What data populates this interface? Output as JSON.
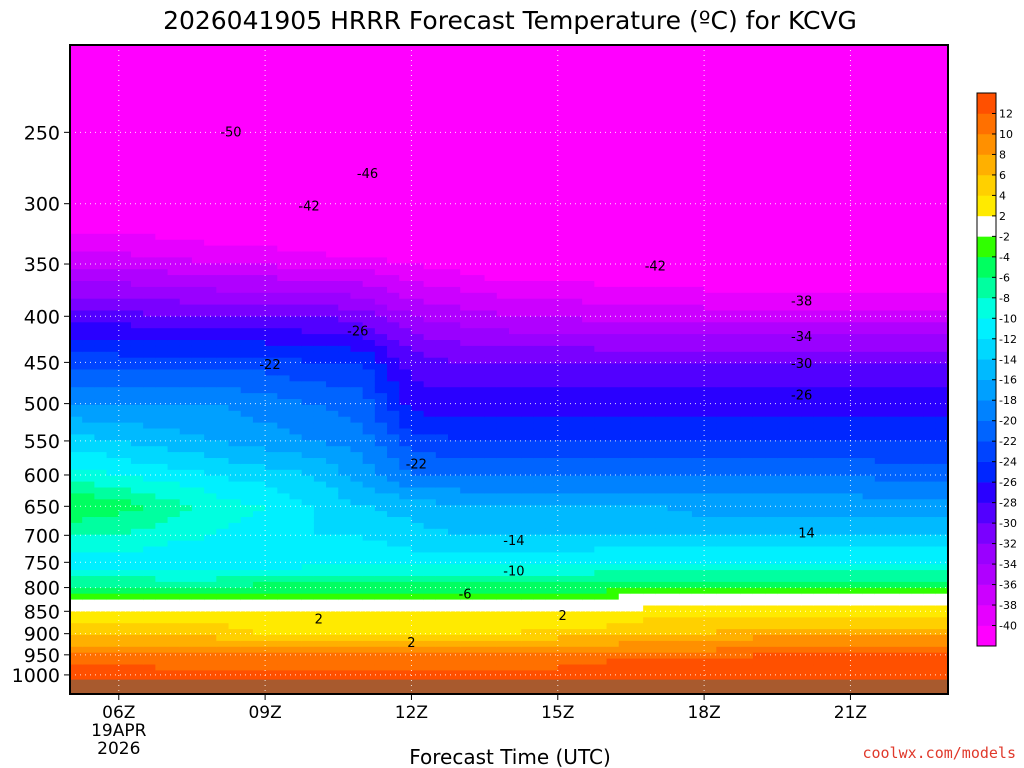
{
  "chart_data": {
    "type": "heatmap",
    "title": "2026041905 HRRR Forecast Temperature (ºC) for KCVG",
    "xlabel": "Forecast Time (UTC)",
    "ylabel": "",
    "y_axis": {
      "scale": "log",
      "reversed": true,
      "range": [
        200,
        1050
      ],
      "ticks": [
        250,
        300,
        350,
        400,
        450,
        500,
        550,
        600,
        650,
        700,
        750,
        800,
        850,
        900,
        950,
        1000
      ]
    },
    "x_axis": {
      "range_hours": [
        5,
        23
      ],
      "range_utc": [
        "05Z",
        "23Z"
      ],
      "ticks": [
        {
          "hour": 6,
          "label": "06Z",
          "sub1": "19APR",
          "sub2": "2026"
        },
        {
          "hour": 9,
          "label": "09Z"
        },
        {
          "hour": 12,
          "label": "12Z"
        },
        {
          "hour": 15,
          "label": "15Z"
        },
        {
          "hour": 18,
          "label": "18Z"
        },
        {
          "hour": 21,
          "label": "21Z"
        }
      ]
    },
    "grid": true,
    "colorbar": {
      "placement": "right",
      "boundaries": [
        -42,
        -40,
        -38,
        -36,
        -34,
        -32,
        -30,
        -28,
        -26,
        -24,
        -22,
        -20,
        -18,
        -16,
        -14,
        -12,
        -10,
        -8,
        -6,
        -4,
        -2,
        2,
        4,
        6,
        8,
        10,
        12,
        14
      ],
      "tick_labels": [
        "-40",
        "-38",
        "-36",
        "-34",
        "-32",
        "-30",
        "-28",
        "-26",
        "-24",
        "-22",
        "-20",
        "-18",
        "-16",
        "-14",
        "-12",
        "-10",
        "-8",
        "-6",
        "-4",
        "-2",
        "2",
        "4",
        "6",
        "8",
        "10",
        "12"
      ],
      "colors": [
        "#ff00ff",
        "#e600ff",
        "#cc00ff",
        "#b000ff",
        "#9a00ff",
        "#7a00ff",
        "#5200ff",
        "#2a00ff",
        "#0026ff",
        "#0044ff",
        "#0064ff",
        "#0082ff",
        "#00a0ff",
        "#00baff",
        "#00d8ff",
        "#00f0ff",
        "#00ffe0",
        "#00ffa0",
        "#00ff60",
        "#30ff00",
        "#ffffff",
        "#ffea00",
        "#ffd000",
        "#ffb000",
        "#ff9000",
        "#ff7000",
        "#ff5000"
      ]
    },
    "contour_labels": [
      {
        "text": "-50",
        "hour": 8.3,
        "p": 250
      },
      {
        "text": "-46",
        "hour": 11.1,
        "p": 278
      },
      {
        "text": "-42",
        "hour": 9.9,
        "p": 302
      },
      {
        "text": "-42",
        "hour": 17.0,
        "p": 352
      },
      {
        "text": "-38",
        "hour": 20.0,
        "p": 385
      },
      {
        "text": "-34",
        "hour": 20.0,
        "p": 422
      },
      {
        "text": "-30",
        "hour": 20.0,
        "p": 452
      },
      {
        "text": "-26",
        "hour": 20.0,
        "p": 490
      },
      {
        "text": "-26",
        "hour": 10.9,
        "p": 416
      },
      {
        "text": "-22",
        "hour": 9.1,
        "p": 453
      },
      {
        "text": "-22",
        "hour": 12.1,
        "p": 584
      },
      {
        "text": "-14",
        "hour": 14.1,
        "p": 710
      },
      {
        "text": "14",
        "hour": 20.1,
        "p": 697
      },
      {
        "text": "-10",
        "hour": 14.1,
        "p": 768
      },
      {
        "text": "-6",
        "hour": 13.1,
        "p": 814
      },
      {
        "text": "2",
        "hour": 10.1,
        "p": 868
      },
      {
        "text": "2",
        "hour": 15.1,
        "p": 860
      },
      {
        "text": "2",
        "hour": 12.0,
        "p": 922
      }
    ],
    "profiles": {
      "pressures": [
        200,
        250,
        300,
        350,
        400,
        450,
        500,
        550,
        600,
        650,
        700,
        750,
        800,
        850,
        900,
        950,
        1000
      ],
      "hours": [
        5,
        6,
        7,
        8,
        9,
        10,
        11,
        12,
        13,
        14,
        15,
        16,
        17,
        18,
        19,
        20,
        21,
        22,
        23
      ],
      "temps": [
        [
          -56,
          -51,
          -43,
          -37,
          -29,
          -23,
          -18,
          -13,
          -9,
          -4,
          -8,
          -11,
          -6,
          3,
          5,
          11,
          13
        ],
        [
          -56,
          -51,
          -43,
          -37,
          -29,
          -23,
          -18,
          -14,
          -10,
          -5,
          -8,
          -11,
          -6,
          3,
          5,
          11,
          13
        ],
        [
          -56,
          -51,
          -44,
          -37,
          -30,
          -23,
          -18,
          -15,
          -11,
          -7,
          -9,
          -12,
          -6,
          3,
          5,
          10,
          13
        ],
        [
          -56,
          -51,
          -44,
          -38,
          -30,
          -23,
          -18,
          -16,
          -12,
          -9,
          -10,
          -12,
          -6,
          3,
          5,
          10,
          13
        ],
        [
          -56,
          -51,
          -45,
          -38,
          -30,
          -23,
          -19,
          -17,
          -13,
          -10,
          -11,
          -12,
          -5,
          2,
          4,
          10,
          13
        ],
        [
          -56,
          -51,
          -45,
          -39,
          -30,
          -24,
          -20,
          -18,
          -14,
          -12,
          -12,
          -11,
          -5,
          2,
          4,
          10,
          13
        ],
        [
          -56,
          -51,
          -46,
          -39,
          -31,
          -24,
          -21,
          -19,
          -17,
          -14,
          -12,
          -11,
          -5,
          2,
          4,
          10,
          13
        ],
        [
          -56,
          -52,
          -46,
          -40,
          -34,
          -29,
          -27,
          -23,
          -20,
          -15,
          -13,
          -11,
          -5,
          2,
          4,
          10,
          13
        ],
        [
          -56,
          -52,
          -46,
          -41,
          -35,
          -30,
          -27,
          -24,
          -20,
          -16,
          -14,
          -11,
          -5,
          2,
          4,
          10,
          13
        ],
        [
          -56,
          -52,
          -47,
          -42,
          -36,
          -30,
          -27,
          -24,
          -20,
          -16,
          -14,
          -11,
          -5,
          2,
          4,
          10,
          13
        ],
        [
          -56,
          -52,
          -47,
          -42,
          -36,
          -30,
          -27,
          -24,
          -20,
          -16,
          -14,
          -11,
          -5,
          2,
          5,
          10,
          13
        ],
        [
          -56,
          -53,
          -48,
          -42,
          -37,
          -30,
          -27,
          -24,
          -20,
          -16,
          -14,
          -10,
          -5,
          2,
          5,
          11,
          14
        ],
        [
          -56,
          -53,
          -48,
          -42,
          -37,
          -30,
          -27,
          -24,
          -20,
          -16,
          -14,
          -10,
          -4,
          3,
          6,
          11,
          14
        ],
        [
          -56,
          -53,
          -48,
          -43,
          -37,
          -30,
          -27,
          -24,
          -20,
          -17,
          -14,
          -10,
          -4,
          3,
          6,
          11,
          14
        ],
        [
          -56,
          -53,
          -48,
          -43,
          -37,
          -30,
          -27,
          -24,
          -20,
          -17,
          -14,
          -10,
          -4,
          3,
          7,
          12,
          14
        ],
        [
          -56,
          -53,
          -48,
          -43,
          -37,
          -30,
          -27,
          -24,
          -20,
          -17,
          -14,
          -10,
          -4,
          3,
          7,
          12,
          14
        ],
        [
          -56,
          -53,
          -48,
          -43,
          -37,
          -30,
          -27,
          -24,
          -20,
          -17,
          -14,
          -10,
          -4,
          3,
          7,
          12,
          14
        ],
        [
          -56,
          -53,
          -48,
          -43,
          -37,
          -30,
          -27,
          -24,
          -21,
          -17,
          -14,
          -10,
          -4,
          3,
          7,
          12,
          14
        ],
        [
          -56,
          -53,
          -48,
          -43,
          -37,
          -30,
          -27,
          -24,
          -21,
          -17,
          -14,
          -10,
          -4,
          3,
          7,
          12,
          14
        ]
      ]
    },
    "ground_color": "#a85a2e"
  },
  "credit": "coolwx.com/models"
}
